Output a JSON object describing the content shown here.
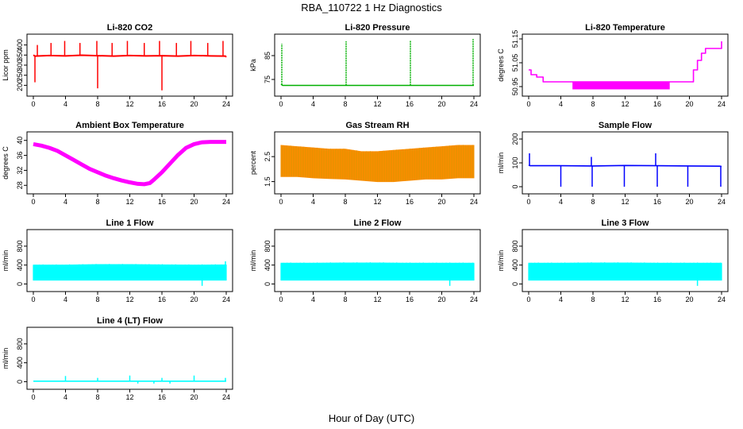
{
  "figure": {
    "title": "RBA_110722  1 Hz Diagnostics",
    "xlabel": "Hour of Day (UTC)"
  },
  "chart_data": [
    {
      "id": "co2",
      "type": "line",
      "title": "Li-820 CO2",
      "ylabel": "Licor ppm",
      "color": "#ff0000",
      "xlim": [
        0,
        24
      ],
      "ylim": [
        170,
        430
      ],
      "xticks": [
        0,
        4,
        8,
        12,
        16,
        20,
        24
      ],
      "yticks": [
        200,
        250,
        300,
        350,
        400
      ],
      "x": [
        0,
        0.2,
        2,
        4,
        6,
        8,
        10,
        12,
        14,
        16,
        18,
        20,
        22,
        23.9,
        24
      ],
      "y": [
        350,
        345,
        348,
        346,
        349,
        347,
        345,
        348,
        346,
        347,
        345,
        348,
        346,
        345,
        340
      ],
      "spikes": [
        [
          0.2,
          215
        ],
        [
          0.5,
          400
        ],
        [
          2.2,
          410
        ],
        [
          3.9,
          420
        ],
        [
          5.8,
          410
        ],
        [
          7.9,
          420
        ],
        [
          8.0,
          185
        ],
        [
          9.8,
          410
        ],
        [
          11.7,
          420
        ],
        [
          13.8,
          410
        ],
        [
          15.7,
          420
        ],
        [
          16.0,
          175
        ],
        [
          17.8,
          410
        ],
        [
          19.6,
          420
        ],
        [
          21.7,
          410
        ],
        [
          23.6,
          420
        ]
      ]
    },
    {
      "id": "pressure",
      "type": "line",
      "title": "Li-820 Pressure",
      "ylabel": "kPa",
      "color": "#00b000",
      "xlim": [
        0,
        24
      ],
      "ylim": [
        70,
        92
      ],
      "xticks": [
        0,
        4,
        8,
        12,
        16,
        20,
        24
      ],
      "yticks": [
        75,
        85
      ],
      "x": [
        0,
        0.2,
        4,
        8,
        12,
        16,
        20,
        23.8,
        24
      ],
      "y": [
        73,
        72.5,
        72.5,
        72.5,
        72.5,
        72.5,
        72.5,
        72.5,
        72.5
      ],
      "spikes": [
        [
          0.1,
          90
        ],
        [
          8.1,
          91
        ],
        [
          16.1,
          91.5
        ],
        [
          23.9,
          92
        ]
      ]
    },
    {
      "id": "temp",
      "type": "step",
      "title": "Li-820 Temperature",
      "ylabel": "degrees C",
      "color": "#ff00ff",
      "xlim": [
        0,
        24
      ],
      "ylim": [
        50.93,
        51.15
      ],
      "xticks": [
        0,
        4,
        8,
        12,
        16,
        20,
        24
      ],
      "yticks": [
        50.95,
        51.05,
        51.15
      ],
      "x": [
        0,
        0.3,
        1.0,
        1.8,
        6,
        12,
        17.5,
        20,
        20.5,
        21,
        21.5,
        22,
        23.8,
        24
      ],
      "y": [
        51.02,
        51.0,
        50.99,
        50.97,
        50.97,
        50.97,
        50.97,
        50.97,
        51.02,
        51.06,
        51.09,
        51.11,
        51.11,
        51.14
      ],
      "band": [
        [
          5.5,
          17.5,
          50.94,
          50.97
        ]
      ]
    },
    {
      "id": "ambient",
      "type": "line",
      "title": "Ambient Box Temperature",
      "ylabel": "degrees C",
      "color": "#ff00ff",
      "xlim": [
        0,
        24
      ],
      "ylim": [
        27,
        41
      ],
      "xticks": [
        0,
        4,
        8,
        12,
        16,
        20,
        24
      ],
      "yticks": [
        28,
        32,
        36,
        40
      ],
      "x": [
        0,
        1,
        2,
        3,
        4,
        5,
        6,
        7,
        8,
        9,
        10,
        11,
        12,
        13,
        13.8,
        14.5,
        15,
        16,
        17,
        18,
        19,
        20,
        21,
        22,
        23,
        24
      ],
      "y": [
        39,
        38.6,
        38,
        37.2,
        36,
        34.8,
        33.6,
        32.4,
        31.5,
        30.6,
        29.9,
        29.3,
        28.8,
        28.4,
        28.3,
        28.6,
        29.5,
        31.5,
        33.8,
        36.1,
        38,
        39,
        39.5,
        39.6,
        39.6,
        39.6
      ]
    },
    {
      "id": "rh",
      "type": "band",
      "title": "Gas Stream RH",
      "ylabel": "percent",
      "color": "#ff8c00",
      "xlim": [
        0,
        24
      ],
      "ylim": [
        1.2,
        3.3
      ],
      "xticks": [
        0,
        4,
        8,
        12,
        16,
        20,
        24
      ],
      "yticks": [
        1.5,
        2.5
      ],
      "x": [
        0,
        2,
        4,
        6,
        8,
        10,
        12,
        14,
        16,
        18,
        20,
        22,
        24
      ],
      "upper": [
        2.95,
        2.9,
        2.85,
        2.8,
        2.8,
        2.7,
        2.7,
        2.75,
        2.8,
        2.85,
        2.9,
        2.95,
        2.95
      ],
      "lower": [
        1.7,
        1.7,
        1.65,
        1.62,
        1.6,
        1.55,
        1.5,
        1.5,
        1.55,
        1.6,
        1.6,
        1.65,
        1.65
      ]
    },
    {
      "id": "sample",
      "type": "line",
      "title": "Sample Flow",
      "ylabel": "ml/min",
      "color": "#0000ff",
      "xlim": [
        0,
        24
      ],
      "ylim": [
        -10,
        210
      ],
      "xticks": [
        0,
        4,
        8,
        12,
        16,
        20,
        24
      ],
      "yticks": [
        0,
        100,
        200
      ],
      "x": [
        0,
        0.2,
        4,
        8,
        12,
        16,
        20,
        23.8,
        24
      ],
      "y": [
        90,
        88,
        88,
        87,
        89,
        88,
        87,
        86,
        85
      ],
      "spikes": [
        [
          0.1,
          140
        ],
        [
          4.0,
          0
        ],
        [
          7.9,
          0
        ],
        [
          11.9,
          0
        ],
        [
          15.8,
          140
        ],
        [
          16.0,
          0
        ],
        [
          19.8,
          0
        ],
        [
          23.9,
          0
        ],
        [
          7.8,
          125
        ]
      ]
    },
    {
      "id": "line1",
      "type": "band",
      "title": "Line 1 Flow",
      "ylabel": "ml/min",
      "color": "#00ffff",
      "xlim": [
        0,
        24
      ],
      "ylim": [
        -60,
        1050
      ],
      "xticks": [
        0,
        4,
        8,
        12,
        16,
        20,
        24
      ],
      "yticks": [
        0,
        400,
        800
      ],
      "x": [
        0,
        4,
        8,
        12,
        16,
        20,
        24
      ],
      "upper": [
        400,
        400,
        410,
        410,
        405,
        400,
        405
      ],
      "lower": [
        80,
        80,
        80,
        80,
        80,
        80,
        80
      ],
      "spikes": [
        [
          21,
          -40
        ],
        [
          23.9,
          480
        ]
      ]
    },
    {
      "id": "line2",
      "type": "band",
      "title": "Line 2 Flow",
      "ylabel": "ml/min",
      "color": "#00ffff",
      "xlim": [
        0,
        24
      ],
      "ylim": [
        -60,
        1050
      ],
      "xticks": [
        0,
        4,
        8,
        12,
        16,
        20,
        24
      ],
      "yticks": [
        0,
        400,
        800
      ],
      "x": [
        0,
        4,
        8,
        12,
        16,
        20,
        24
      ],
      "upper": [
        440,
        440,
        445,
        445,
        440,
        440,
        440
      ],
      "lower": [
        80,
        80,
        80,
        80,
        80,
        80,
        80
      ],
      "spikes": [
        [
          21,
          -40
        ]
      ]
    },
    {
      "id": "line3",
      "type": "band",
      "title": "Line 3 Flow",
      "ylabel": "ml/min",
      "color": "#00ffff",
      "xlim": [
        0,
        24
      ],
      "ylim": [
        -60,
        1050
      ],
      "xticks": [
        0,
        4,
        8,
        12,
        16,
        20,
        24
      ],
      "yticks": [
        0,
        400,
        800
      ],
      "x": [
        0,
        4,
        8,
        12,
        16,
        20,
        24
      ],
      "upper": [
        440,
        440,
        445,
        445,
        440,
        440,
        440
      ],
      "lower": [
        80,
        80,
        80,
        80,
        80,
        80,
        80
      ],
      "spikes": [
        [
          21,
          -40
        ]
      ]
    },
    {
      "id": "line4",
      "type": "line",
      "title": "Line 4 (LT) Flow",
      "ylabel": "ml/min",
      "color": "#00ffff",
      "xlim": [
        0,
        24
      ],
      "ylim": [
        -60,
        1050
      ],
      "xticks": [
        0,
        4,
        8,
        12,
        16,
        20,
        24
      ],
      "yticks": [
        0,
        400,
        800
      ],
      "x": [
        0,
        4,
        8,
        12,
        16,
        20,
        24
      ],
      "y": [
        10,
        10,
        10,
        10,
        10,
        10,
        10
      ],
      "spikes": [
        [
          4,
          120
        ],
        [
          8,
          80
        ],
        [
          12,
          130
        ],
        [
          16,
          80
        ],
        [
          20,
          130
        ],
        [
          23.9,
          80
        ],
        [
          13,
          -40
        ],
        [
          15,
          -40
        ],
        [
          17,
          -40
        ]
      ]
    }
  ]
}
